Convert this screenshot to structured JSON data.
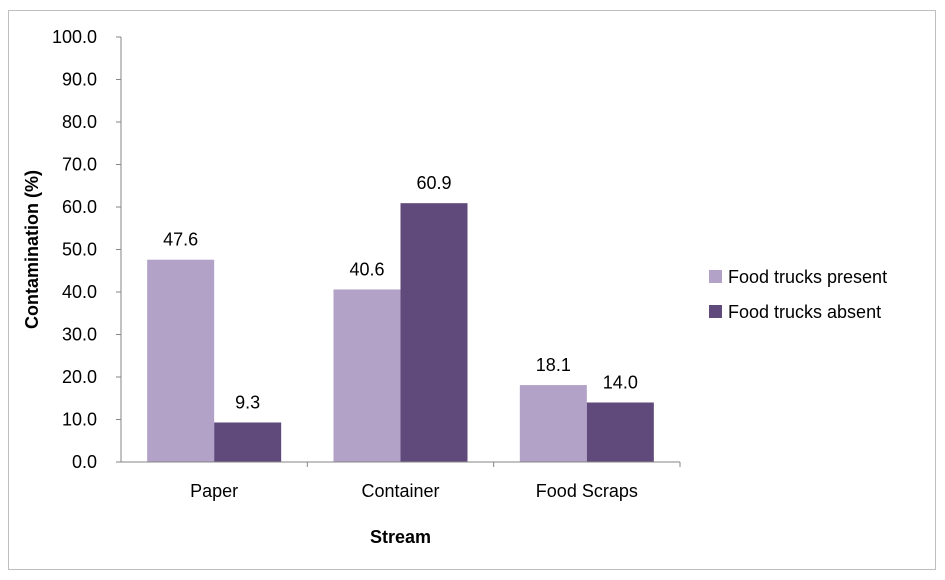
{
  "chart_data": {
    "type": "bar",
    "categories": [
      "Paper",
      "Container",
      "Food Scraps"
    ],
    "series": [
      {
        "name": "Food trucks present",
        "values": [
          47.6,
          40.6,
          18.1
        ],
        "color": "#b3a2c7"
      },
      {
        "name": "Food trucks absent",
        "values": [
          9.3,
          60.9,
          14.0
        ],
        "color": "#604a7b"
      }
    ],
    "data_labels": [
      [
        "47.6",
        "40.6",
        "18.1"
      ],
      [
        "9.3",
        "60.9",
        "14.0"
      ]
    ],
    "title": "",
    "xlabel": "Stream",
    "ylabel": "Contamination (%)",
    "ylim": [
      0,
      100
    ],
    "yticks": [
      0,
      10,
      20,
      30,
      40,
      50,
      60,
      70,
      80,
      90,
      100
    ],
    "ytick_labels": [
      "0.0",
      "10.0",
      "20.0",
      "30.0",
      "40.0",
      "50.0",
      "60.0",
      "70.0",
      "80.0",
      "90.0",
      "100.0"
    ],
    "grid": false,
    "legend_position": "right"
  }
}
